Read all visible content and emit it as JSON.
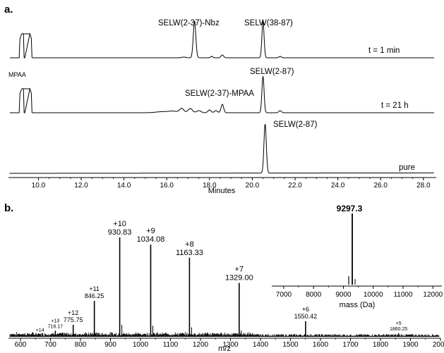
{
  "panel_a": {
    "label": "a.",
    "xlabel": "Minutes",
    "xlim": [
      8.6,
      28.6
    ],
    "ticks": [
      "10.0",
      "12.0",
      "14.0",
      "16.0",
      "18.0",
      "20.0",
      "22.0",
      "24.0",
      "26.0",
      "28.0"
    ],
    "traces": [
      {
        "time_label": "t  =  1 min",
        "peaks": [
          {
            "label": "SELW(2-37)-Nbz",
            "x": 17.3
          },
          {
            "label": "SELW(38-87)",
            "x": 20.5
          }
        ]
      },
      {
        "time_label": "t = 21 h",
        "peaks": [
          {
            "label": "MPAA",
            "x": 9.4
          },
          {
            "label": "SELW(2-37)-MPAA",
            "x": 18.5
          },
          {
            "label": "SELW(2-87)",
            "x": 20.5
          }
        ]
      },
      {
        "time_label": "pure",
        "peaks": [
          {
            "label": "SELW(2-87)",
            "x": 20.6
          }
        ]
      }
    ]
  },
  "panel_b": {
    "label": "b.",
    "xlabel": "m/z",
    "xlim": [
      560,
      2000
    ],
    "ticks": [
      "600",
      "700",
      "800",
      "900",
      "1000",
      "1100",
      "1200",
      "1300",
      "1400",
      "1500",
      "1600",
      "1700",
      "1800",
      "1900",
      "2000"
    ],
    "charge_states": [
      {
        "charge": "+14",
        "mz": "",
        "x": 665,
        "h": 0.02
      },
      {
        "charge": "+13",
        "mz": "716.17",
        "x": 716.17,
        "h": 0.05
      },
      {
        "charge": "+12",
        "mz": "775.75",
        "x": 775.75,
        "h": 0.1
      },
      {
        "charge": "+11",
        "mz": "846.25",
        "x": 846.25,
        "h": 0.3
      },
      {
        "charge": "+10",
        "mz": "930.83",
        "x": 930.83,
        "h": 0.83
      },
      {
        "charge": "+9",
        "mz": "1034.08",
        "x": 1034.08,
        "h": 0.77
      },
      {
        "charge": "+8",
        "mz": "1163.33",
        "x": 1163.33,
        "h": 0.66
      },
      {
        "charge": "+7",
        "mz": "1329.00",
        "x": 1329.0,
        "h": 0.45
      },
      {
        "charge": "+6",
        "mz": "1550.42",
        "x": 1550.42,
        "h": 0.13
      },
      {
        "charge": "+5",
        "mz": "1860.25",
        "x": 1860.25,
        "h": 0.03
      }
    ],
    "inset": {
      "xlabel": "mass (Da)",
      "xlim": [
        6600,
        12300
      ],
      "ticks": [
        "7000",
        "8000",
        "9000",
        "10000",
        "11000",
        "12000"
      ],
      "peak_label": "9297.3",
      "peak_mass": 9297.3
    }
  },
  "chart_data": [
    {
      "type": "line",
      "title": "",
      "xlabel": "Minutes",
      "ylabel": "",
      "xlim": [
        8.6,
        28.6
      ],
      "grid": false,
      "series": [
        {
          "name": "t  =  1 min",
          "peaks": [
            {
              "x": 9.2,
              "label": ""
            },
            {
              "x": 9.7,
              "label": ""
            },
            {
              "x": 17.3,
              "label": "SELW(2-37)-Nbz"
            },
            {
              "x": 20.5,
              "label": "SELW(38-87)"
            }
          ]
        },
        {
          "name": "t = 21 h",
          "peaks": [
            {
              "x": 9.2,
              "label": "MPAA"
            },
            {
              "x": 9.7,
              "label": ""
            },
            {
              "x": 18.5,
              "label": "SELW(2-37)-MPAA"
            },
            {
              "x": 20.5,
              "label": "SELW(2-87)"
            }
          ]
        },
        {
          "name": "pure",
          "peaks": [
            {
              "x": 20.6,
              "label": "SELW(2-87)"
            }
          ]
        }
      ]
    },
    {
      "type": "bar",
      "title": "",
      "xlabel": "m/z",
      "ylabel": "",
      "xlim": [
        560,
        2000
      ],
      "x": [
        716.17,
        775.75,
        846.25,
        930.83,
        1034.08,
        1163.33,
        1329.0,
        1550.42,
        1860.25
      ],
      "labels": [
        "+13",
        "+12",
        "+11",
        "+10",
        "+9",
        "+8",
        "+7",
        "+6",
        "+5"
      ]
    },
    {
      "type": "bar",
      "title": "",
      "xlabel": "mass (Da)",
      "ylabel": "",
      "xlim": [
        6600,
        12300
      ],
      "x": [
        9297.3
      ],
      "labels": [
        "9297.3"
      ]
    }
  ]
}
